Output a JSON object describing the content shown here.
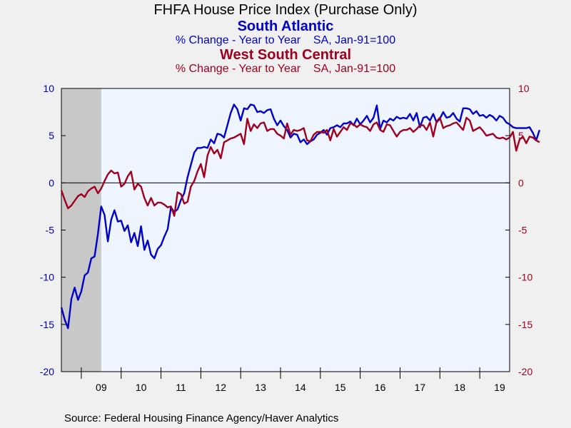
{
  "chart_data": {
    "type": "line",
    "title": "FHFA House Price Index (Purchase Only)",
    "x_start": "2008-07",
    "x_end": "2019-10",
    "recession": {
      "start": "2008-07",
      "end": "2009-06",
      "color": "#c8c8c8"
    },
    "x_tick_labels": [
      "09",
      "10",
      "11",
      "12",
      "13",
      "14",
      "15",
      "16",
      "17",
      "18",
      "19"
    ],
    "left_axis": {
      "ylim": [
        -20,
        10
      ],
      "ticks": [
        10,
        5,
        0,
        -5,
        -10,
        -15,
        -20
      ],
      "color": "#0000b4"
    },
    "right_axis": {
      "ylim": [
        -20,
        10
      ],
      "ticks": [
        10,
        5,
        0,
        -5,
        -10,
        -15,
        -20
      ],
      "color": "#a0001e"
    },
    "grid": false,
    "zero_line": true,
    "series": [
      {
        "name": "South Atlantic",
        "subtitle": "% Change - Year to Year    SA, Jan-91=100",
        "color": "#0000c8",
        "values": [
          -13.2,
          -14.5,
          -15.4,
          -12.3,
          -11.1,
          -12.4,
          -11.5,
          -9.8,
          -9.5,
          -8.0,
          -7.8,
          -5.4,
          -2.5,
          -3.4,
          -6.2,
          -3.9,
          -2.9,
          -4.1,
          -4.0,
          -5.1,
          -4.5,
          -6.3,
          -5.3,
          -6.7,
          -4.6,
          -7.1,
          -6.1,
          -7.6,
          -8.0,
          -7.0,
          -6.6,
          -5.7,
          -4.9,
          -2.6,
          -3.1,
          -2.8,
          -1.8,
          -1.1,
          0.6,
          1.9,
          3.2,
          3.7,
          3.7,
          3.8,
          3.7,
          4.6,
          4.2,
          5.2,
          5.1,
          4.8,
          6.1,
          7.4,
          8.3,
          7.8,
          6.6,
          7.9,
          7.8,
          8.3,
          8.2,
          7.5,
          7.6,
          7.4,
          7.7,
          7.8,
          6.8,
          6.1,
          6.6,
          6.0,
          5.6,
          4.8,
          5.2,
          5.1,
          4.3,
          4.6,
          4.1,
          4.4,
          4.6,
          5.1,
          5.3,
          5.6,
          5.1,
          5.8,
          5.9,
          6.1,
          5.9,
          6.3,
          6.3,
          6.5,
          6.1,
          6.8,
          6.2,
          6.6,
          7.1,
          6.4,
          6.9,
          8.2,
          5.7,
          6.6,
          6.4,
          6.8,
          6.6,
          7.0,
          6.8,
          6.9,
          6.8,
          7.3,
          6.6,
          7.4,
          5.9,
          6.9,
          7.0,
          6.6,
          7.3,
          6.4,
          6.8,
          7.5,
          6.9,
          7.0,
          7.4,
          6.8,
          6.5,
          7.9,
          7.9,
          7.8,
          7.3,
          7.6,
          7.1,
          7.2,
          6.9,
          7.2,
          7.0,
          6.6,
          7.1,
          6.9,
          6.4,
          6.2,
          5.9,
          5.8,
          5.8,
          5.8,
          5.8,
          5.9,
          5.3,
          4.5,
          5.6
        ]
      },
      {
        "name": "West South Central",
        "subtitle": "% Change - Year to Year    SA, Jan-91=100",
        "color": "#a0001e",
        "values": [
          -0.8,
          -1.8,
          -2.7,
          -2.4,
          -1.9,
          -1.4,
          -1.2,
          -1.5,
          -0.9,
          -0.6,
          -0.4,
          -1.1,
          -0.6,
          0.2,
          0.9,
          1.3,
          1.0,
          1.1,
          -0.4,
          -0.1,
          0.7,
          1.2,
          -0.7,
          -0.1,
          -0.4,
          -1.6,
          -2.4,
          -1.6,
          -2.4,
          -2.1,
          -2.1,
          -2.3,
          -2.6,
          -2.5,
          -3.5,
          -1.0,
          -1.2,
          -2.2,
          -2.0,
          -0.4,
          0.2,
          1.2,
          2.0,
          0.6,
          2.9,
          3.8,
          3.1,
          3.5,
          2.6,
          4.3,
          4.5,
          4.7,
          4.8,
          5.0,
          5.2,
          4.1,
          6.8,
          5.5,
          6.2,
          5.8,
          6.3,
          6.4,
          5.5,
          5.7,
          5.7,
          5.2,
          5.0,
          4.7,
          6.3,
          5.1,
          5.6,
          5.5,
          5.6,
          5.8,
          4.5,
          4.4,
          5.1,
          5.4,
          5.4,
          5.3,
          5.6,
          4.5,
          5.7,
          4.9,
          5.4,
          5.9,
          5.6,
          6.3,
          6.2,
          5.9,
          6.2,
          6.0,
          5.9,
          5.5,
          6.2,
          6.4,
          5.6,
          5.4,
          6.2,
          6.1,
          5.5,
          4.9,
          5.4,
          5.6,
          5.6,
          5.8,
          5.4,
          5.7,
          6.1,
          6.1,
          5.6,
          6.4,
          4.9,
          6.5,
          6.9,
          5.8,
          6.0,
          6.1,
          6.3,
          6.4,
          6.0,
          5.6,
          6.9,
          6.6,
          5.5,
          5.7,
          5.9,
          5.5,
          5.0,
          5.1,
          5.2,
          4.8,
          4.7,
          4.8,
          4.6,
          4.8,
          5.4,
          3.4,
          4.6,
          4.9,
          4.2,
          4.9,
          4.8,
          4.5,
          4.3
        ]
      }
    ]
  },
  "source": "Source:  Federal Housing Finance Agency/Haver Analytics"
}
